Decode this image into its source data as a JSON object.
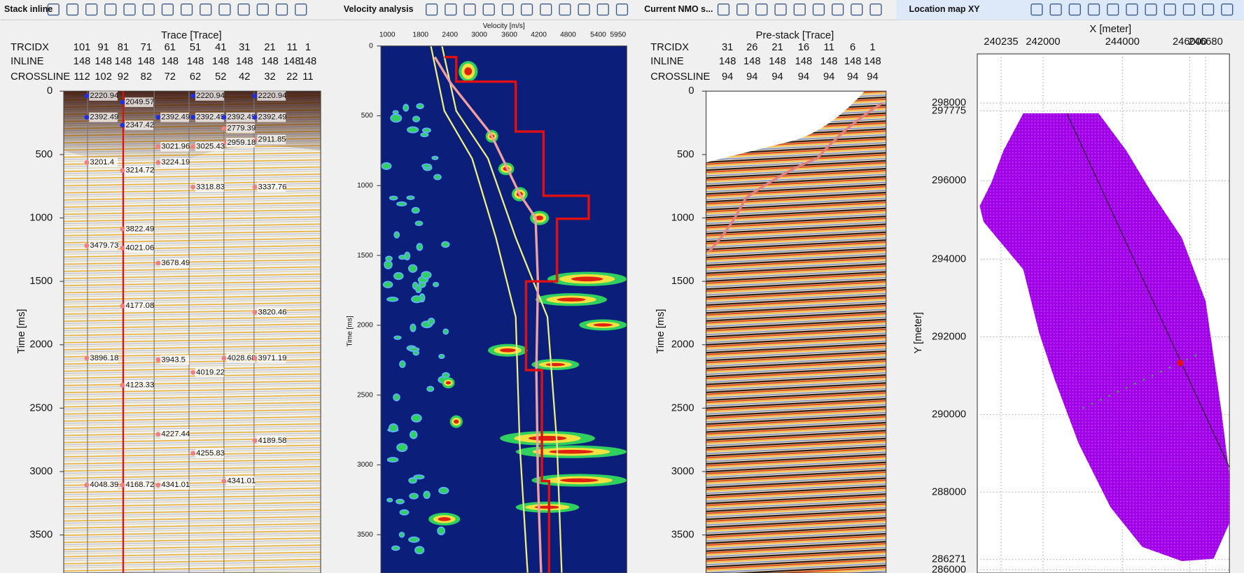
{
  "panels": [
    {
      "title": "Stack inline",
      "axis_title": "Trace [Trace]",
      "y_axis_label": "Time [ms]",
      "header_rows": [
        {
          "label": "TRCIDX",
          "values": [
            "101",
            "91",
            "81",
            "71",
            "61",
            "51",
            "41",
            "31",
            "21",
            "11",
            "1"
          ]
        },
        {
          "label": "INLINE",
          "values": [
            "148",
            "148",
            "148",
            "148",
            "148",
            "148",
            "148",
            "148",
            "148",
            "148",
            "148"
          ]
        },
        {
          "label": "CROSSLINE",
          "values": [
            "112",
            "102",
            "92",
            "82",
            "72",
            "62",
            "52",
            "42",
            "32",
            "22",
            "11"
          ]
        }
      ],
      "yticks": [
        "0",
        "500",
        "1000",
        "1500",
        "2000",
        "2500",
        "3000",
        "3500"
      ],
      "annotations": [
        "2220.94",
        "2049.57",
        "2392.49",
        "2347.42",
        "2220.94",
        "2220.94",
        "2392.49",
        "2392.49",
        "2392.49",
        "2392.49",
        "2779.39",
        "2911.85",
        "2959.18",
        "3021.96",
        "3025.43",
        "3201.4",
        "3214.72",
        "3224.19",
        "3318.83",
        "3337.76",
        "3822.49",
        "3479.73",
        "4021.06",
        "3678.49",
        "4177.08",
        "3820.46",
        "3896.18",
        "3943.5",
        "4028.68",
        "3971.19",
        "4019.22",
        "4123.33",
        "4227.44",
        "4255.83",
        "4189.58",
        "4048.39",
        "4168.72",
        "4341.01",
        "4341.01"
      ]
    },
    {
      "title": "Velocity analysis",
      "x_axis_label": "Velocity [m/s]",
      "y_axis_label": "Time [ms]",
      "xticks": [
        "1000",
        "1800",
        "2400",
        "3000",
        "3600",
        "4200",
        "4800",
        "5400",
        "5950"
      ],
      "yticks": [
        "0",
        "500",
        "1000",
        "1500",
        "2000",
        "2500",
        "3000",
        "3500"
      ]
    },
    {
      "title": "Current NMO s...",
      "axis_title": "Pre-stack [Trace]",
      "y_axis_label": "Time [ms]",
      "header_rows": [
        {
          "label": "TRCIDX",
          "values": [
            "31",
            "26",
            "21",
            "16",
            "11",
            "6",
            "1"
          ]
        },
        {
          "label": "INLINE",
          "values": [
            "148",
            "148",
            "148",
            "148",
            "148",
            "148",
            "148"
          ]
        },
        {
          "label": "CROSSLINE",
          "values": [
            "94",
            "94",
            "94",
            "94",
            "94",
            "94",
            "94"
          ]
        }
      ],
      "yticks": [
        "0",
        "500",
        "1000",
        "1500",
        "2000",
        "2500",
        "3000",
        "3500"
      ]
    },
    {
      "title": "Location map XY",
      "x_axis_label": "X [meter]",
      "y_axis_label": "Y [meter]",
      "xticks": [
        "240235",
        "242000",
        "244000",
        "246000",
        "246680"
      ],
      "yticks": [
        "298000",
        "297775",
        "296000",
        "294000",
        "292000",
        "290000",
        "288000",
        "286271",
        "286000"
      ]
    }
  ]
}
